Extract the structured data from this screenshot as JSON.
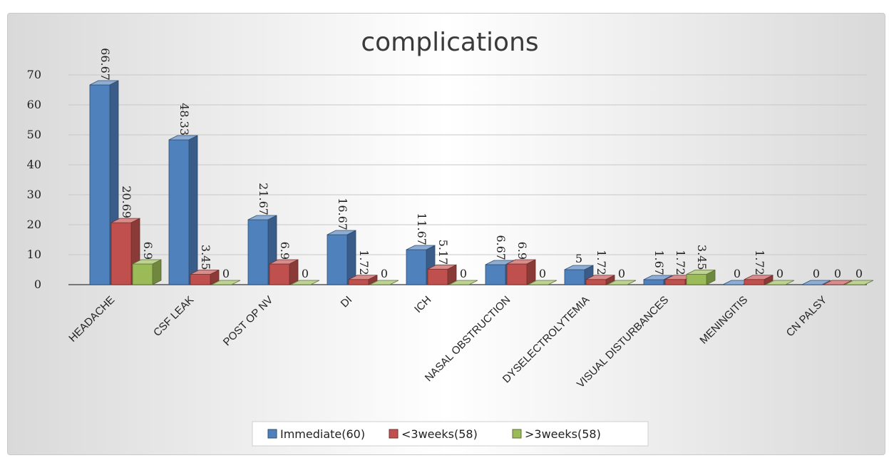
{
  "top_caption": "                                                                  ",
  "chart_data": {
    "type": "bar",
    "title": "complications",
    "categories": [
      "HEADACHE",
      "CSF LEAK",
      "POST OP NV",
      "DI",
      "ICH",
      "NASAL OBSTRUCTION",
      "DYSELECTROLYTEMIA",
      "VISUAL DISTURBANCES",
      "MENINGITIS",
      "CN PALSY"
    ],
    "series": [
      {
        "name": "Immediate(60)",
        "color": "#4f81bd",
        "values": [
          66.67,
          48.33,
          21.67,
          16.67,
          11.67,
          6.67,
          5,
          1.67,
          0,
          0
        ],
        "labels": [
          "66.67",
          "48.33",
          "21.67",
          "16.67",
          "11.67",
          "6.67",
          "5",
          "1.67",
          "0",
          "0"
        ]
      },
      {
        "name": "<3weeks(58)",
        "color": "#c0504d",
        "values": [
          20.69,
          3.45,
          6.9,
          1.72,
          5.17,
          6.9,
          1.72,
          1.72,
          1.72,
          0
        ],
        "labels": [
          "20.69",
          "3.45",
          "6.9",
          "1.72",
          "5.17",
          "6.9",
          "1.72",
          "1.72",
          "1.72",
          "0"
        ]
      },
      {
        "name": ">3weeks(58)",
        "color": "#9bbb59",
        "values": [
          6.9,
          0,
          0,
          0,
          0,
          0,
          0,
          3.45,
          0,
          0
        ],
        "labels": [
          "6.9",
          "0",
          "0",
          "0",
          "0",
          "0",
          "0",
          "3.45",
          "0",
          "0"
        ]
      }
    ],
    "yticks": [
      "0",
      "10",
      "20",
      "30",
      "40",
      "50",
      "60",
      "70"
    ],
    "ylim": [
      0,
      70
    ],
    "xlabel": "",
    "ylabel": "",
    "grid": true,
    "legend_position": "bottom"
  }
}
